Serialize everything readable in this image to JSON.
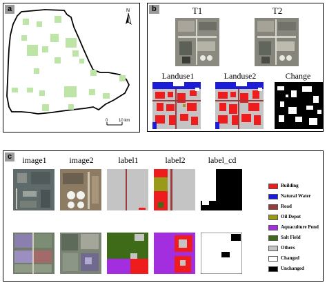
{
  "panel_a": {
    "tag": "a",
    "north_label": "N",
    "scale_left": "0",
    "scale_right": "10 km"
  },
  "panel_b": {
    "tag": "b",
    "t1": "T1",
    "t2": "T2",
    "landuse1": "Landuse1",
    "landuse2": "Landuse2",
    "change": "Change"
  },
  "panel_c": {
    "tag": "c",
    "columns": [
      "image1",
      "image2",
      "label1",
      "label2",
      "label_cd"
    ]
  },
  "legend": [
    {
      "label": "Building",
      "color": "#ee1c1c"
    },
    {
      "label": "Natural Water",
      "color": "#1c1cd8"
    },
    {
      "label": "Road",
      "color": "#9b3b3b"
    },
    {
      "label": "Oil Depot",
      "color": "#9a9a1a"
    },
    {
      "label": "Aquaculture Pond",
      "color": "#a22ee0"
    },
    {
      "label": "Salt Field",
      "color": "#3d6b18"
    },
    {
      "label": "Others",
      "color": "#c4c4c4"
    },
    {
      "label": "Changed",
      "color": "#ffffff"
    },
    {
      "label": "Unchanged",
      "color": "#000000"
    }
  ]
}
